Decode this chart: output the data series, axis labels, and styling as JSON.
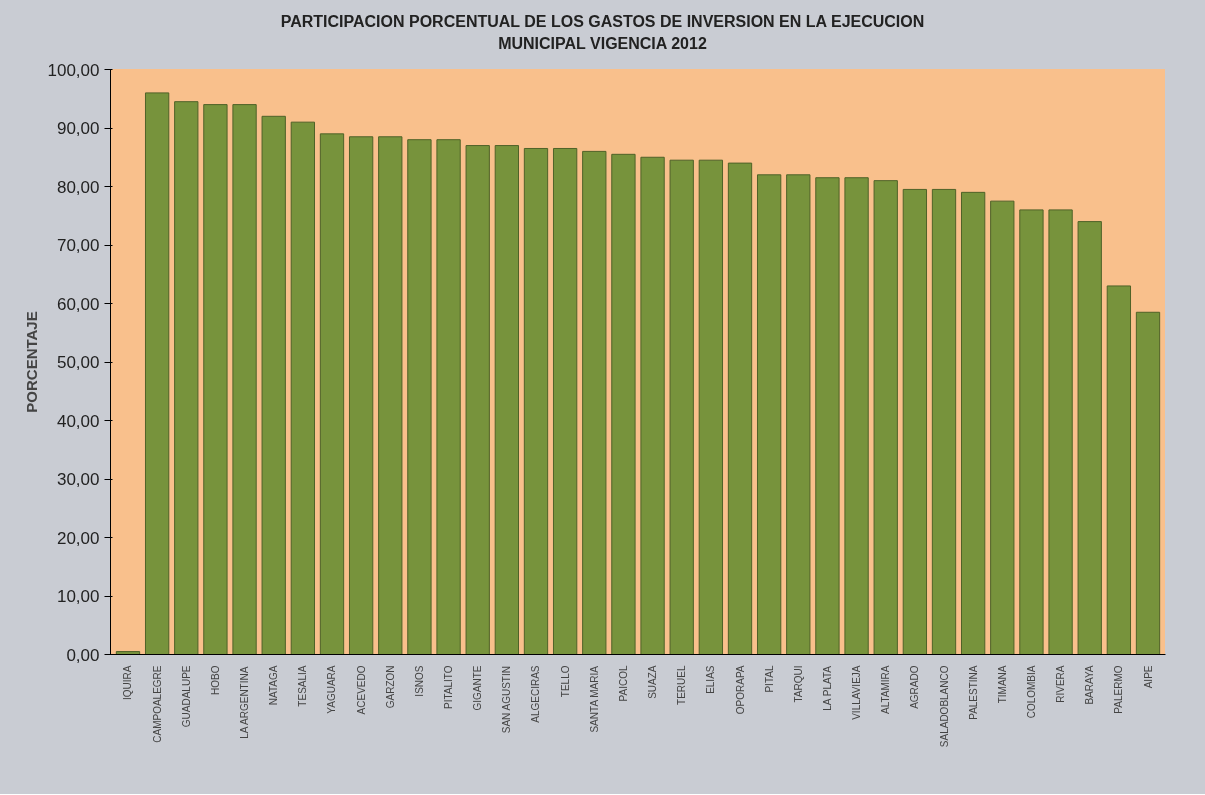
{
  "chart_data": {
    "type": "bar",
    "title": "PARTICIPACION PORCENTUAL DE LOS GASTOS DE INVERSION EN LA EJECUCION\nMUNICIPAL VIGENCIA 2012",
    "ylabel": "PORCENTAJE",
    "categories": [
      "IQUIRA",
      "CAMPOALEGRE",
      "GUADALUPE",
      "HOBO",
      "LA ARGENTINA",
      "NATAGA",
      "TESALIA",
      "YAGUARA",
      "ACEVEDO",
      "GARZON",
      "ISNOS",
      "PITALITO",
      "GIGANTE",
      "SAN AGUSTIN",
      "ALGECIRAS",
      "TELLO",
      "SANTA MARIA",
      "PAICOL",
      "SUAZA",
      "TERUEL",
      "ELIAS",
      "OPORAPA",
      "PITAL",
      "TARQUI",
      "LA PLATA",
      "VILLAVIEJA",
      "ALTAMIRA",
      "AGRADO",
      "SALADOBLANCO",
      "PALESTINA",
      "TIMANA",
      "COLOMBIA",
      "RIVERA",
      "BARAYA",
      "PALERMO",
      "AIPE"
    ],
    "values": [
      0.5,
      96,
      94.5,
      94,
      94,
      92,
      91,
      89,
      88.5,
      88.5,
      88,
      88,
      87,
      87,
      86.5,
      86.5,
      86,
      85.5,
      85,
      84.5,
      84.5,
      84,
      82,
      82,
      81.5,
      81.5,
      81,
      79.5,
      79.5,
      79,
      77.5,
      76,
      76,
      74,
      63,
      58.5
    ],
    "color": "#77933c",
    "ylim": [
      0,
      100
    ],
    "yticks": [
      {
        "value": 0,
        "label": "0,00"
      },
      {
        "value": 10,
        "label": "10,00"
      },
      {
        "value": 20,
        "label": "20,00"
      },
      {
        "value": 30,
        "label": "30,00"
      },
      {
        "value": 40,
        "label": "40,00"
      },
      {
        "value": 50,
        "label": "50,00"
      },
      {
        "value": 60,
        "label": "60,00"
      },
      {
        "value": 70,
        "label": "70,00"
      },
      {
        "value": 80,
        "label": "80,00"
      },
      {
        "value": 90,
        "label": "90,00"
      },
      {
        "value": 100,
        "label": "100,00"
      }
    ],
    "grid": false
  }
}
